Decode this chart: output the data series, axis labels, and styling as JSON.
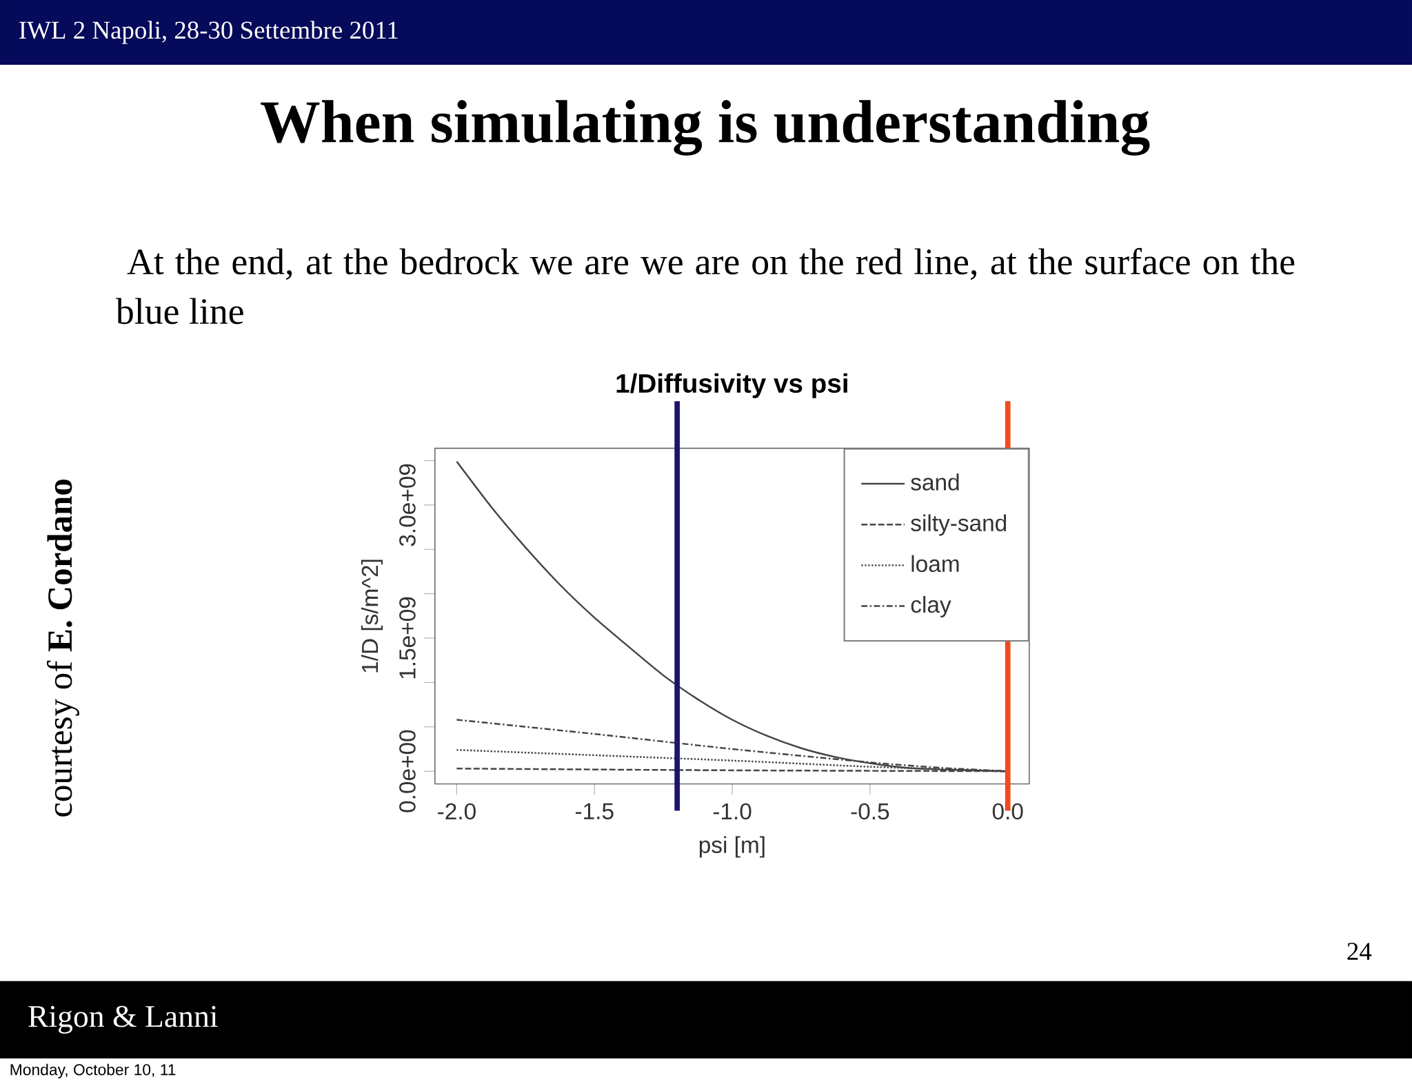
{
  "chart_data": {
    "type": "line",
    "title": "1/Diffusivity vs psi",
    "xlabel": "psi [m]",
    "ylabel": "1/D [s/m^2]",
    "annotations": [
      "IWL 2 Napoli, 28-30 Settembre 2011",
      "When simulating is understanding",
      "At the end, at the bedrock we are we are on the red line, at the surface on the blue  line",
      "courtesy of **E. Cordano**",
      "24",
      "Rigon & Lanni",
      "Monday, October 10, 11"
    ],
    "series": [
      {
        "name": "sand",
        "color": "#444444",
        "line_style": "solid",
        "x": [
          -2,
          -1.875,
          -1.75,
          -1.625,
          -1.5,
          -1.375,
          -1.25,
          -1.125,
          -1.0,
          -0.875,
          -0.75,
          -0.625,
          -0.5,
          -0.375,
          -0.25,
          0
        ],
        "values": [
          3490000000.0,
          2980000000.0,
          2520000000.0,
          2100000000.0,
          1730000000.0,
          1400000000.0,
          1080000000.0,
          810000000.0,
          580000000.0,
          400000000.0,
          260000000.0,
          160000000.0,
          90000000.0,
          40000000.0,
          20000000.0,
          0
        ]
      },
      {
        "name": "silty-sand",
        "color": "#444444",
        "line_style": "dashed",
        "x": [
          -2,
          -1,
          0
        ],
        "values": [
          30000000.0,
          10000000.0,
          0
        ]
      },
      {
        "name": "loam",
        "color": "#444444",
        "line_style": "dotted",
        "x": [
          -2,
          -1,
          -0.5,
          0
        ],
        "values": [
          240000000.0,
          120000000.0,
          50000000.0,
          0
        ]
      },
      {
        "name": "clay",
        "color": "#444444",
        "line_style": "dashdot",
        "x": [
          -2,
          -1.5,
          -1,
          -0.5,
          -0.25,
          0
        ],
        "values": [
          580000000.0,
          420000000.0,
          250000000.0,
          100000000.0,
          40000000.0,
          0
        ]
      }
    ],
    "xlim": [
      -2.079,
      0.078
    ],
    "ylim": [
      -143000000.0,
      3640000000.0
    ],
    "xticks": [
      {
        "value": -2,
        "label": "-2.0"
      },
      {
        "value": -1.5,
        "label": "-1.5"
      },
      {
        "value": -1,
        "label": "-1.0"
      },
      {
        "value": -0.5,
        "label": "-0.5"
      },
      {
        "value": 0,
        "label": "0.0"
      }
    ],
    "yticks": [
      {
        "value": 0,
        "label": "0.0e+00"
      },
      {
        "value": 500000000.0,
        "label": null
      },
      {
        "value": 1000000000.0,
        "label": null
      },
      {
        "value": 1500000000.0,
        "label": "1.5e+09"
      },
      {
        "value": 2000000000.0,
        "label": null
      },
      {
        "value": 2500000000.0,
        "label": null
      },
      {
        "value": 3000000000.0,
        "label": "3.0e+09"
      },
      {
        "value": 3500000000.0,
        "label": null
      }
    ],
    "ref_lines": [
      {
        "axis": "x",
        "value": -1.2,
        "color": "#1c1470"
      },
      {
        "axis": "x",
        "value": 0.0,
        "color": "#f04a1e"
      }
    ],
    "legend": "top right",
    "grid": false
  }
}
